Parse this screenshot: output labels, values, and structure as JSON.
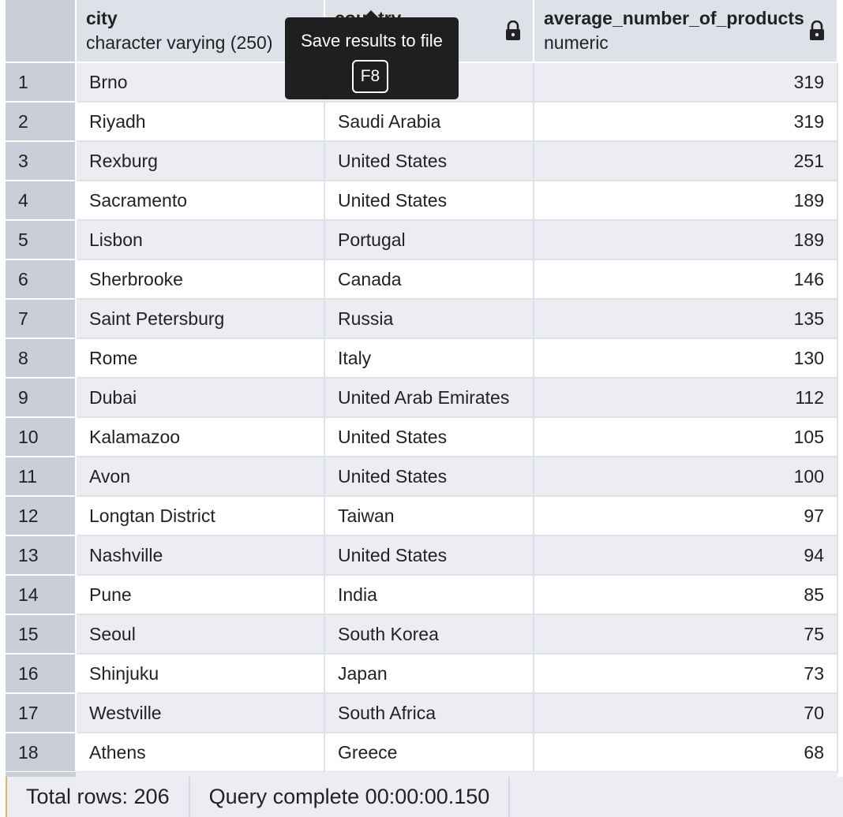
{
  "columns": {
    "city": {
      "name": "city",
      "type": "character varying (250)"
    },
    "country": {
      "name": "country",
      "type": ""
    },
    "average": {
      "name": "average_number_of_products",
      "type": "numeric"
    }
  },
  "tooltip": {
    "text": "Save results to file",
    "shortcut": "F8"
  },
  "rows": [
    {
      "num": "1",
      "city": "Brno",
      "country": "",
      "avg": "319"
    },
    {
      "num": "2",
      "city": "Riyadh",
      "country": "Saudi Arabia",
      "avg": "319"
    },
    {
      "num": "3",
      "city": "Rexburg",
      "country": "United States",
      "avg": "251"
    },
    {
      "num": "4",
      "city": "Sacramento",
      "country": "United States",
      "avg": "189"
    },
    {
      "num": "5",
      "city": "Lisbon",
      "country": "Portugal",
      "avg": "189"
    },
    {
      "num": "6",
      "city": "Sherbrooke",
      "country": "Canada",
      "avg": "146"
    },
    {
      "num": "7",
      "city": "Saint Petersburg",
      "country": "Russia",
      "avg": "135"
    },
    {
      "num": "8",
      "city": "Rome",
      "country": "Italy",
      "avg": "130"
    },
    {
      "num": "9",
      "city": "Dubai",
      "country": "United Arab Emirates",
      "avg": "112"
    },
    {
      "num": "10",
      "city": "Kalamazoo",
      "country": "United States",
      "avg": "105"
    },
    {
      "num": "11",
      "city": "Avon",
      "country": "United States",
      "avg": "100"
    },
    {
      "num": "12",
      "city": "Longtan District",
      "country": "Taiwan",
      "avg": "97"
    },
    {
      "num": "13",
      "city": "Nashville",
      "country": "United States",
      "avg": "94"
    },
    {
      "num": "14",
      "city": "Pune",
      "country": "India",
      "avg": "85"
    },
    {
      "num": "15",
      "city": "Seoul",
      "country": "South Korea",
      "avg": "75"
    },
    {
      "num": "16",
      "city": "Shinjuku",
      "country": "Japan",
      "avg": "73"
    },
    {
      "num": "17",
      "city": "Westville",
      "country": "South Africa",
      "avg": "70"
    },
    {
      "num": "18",
      "city": "Athens",
      "country": "Greece",
      "avg": "68"
    }
  ],
  "status": {
    "total_rows": "Total rows: 206",
    "query_complete": "Query complete 00:00:00.150"
  },
  "icons": {
    "lock": "lock-icon"
  },
  "colors": {
    "header_bg": "#dde1e8",
    "rownum_bg": "#c9ced8",
    "odd_row_bg": "#ebedf2",
    "tooltip_bg": "#1f1f1f",
    "status_accent": "#f2b24a"
  }
}
